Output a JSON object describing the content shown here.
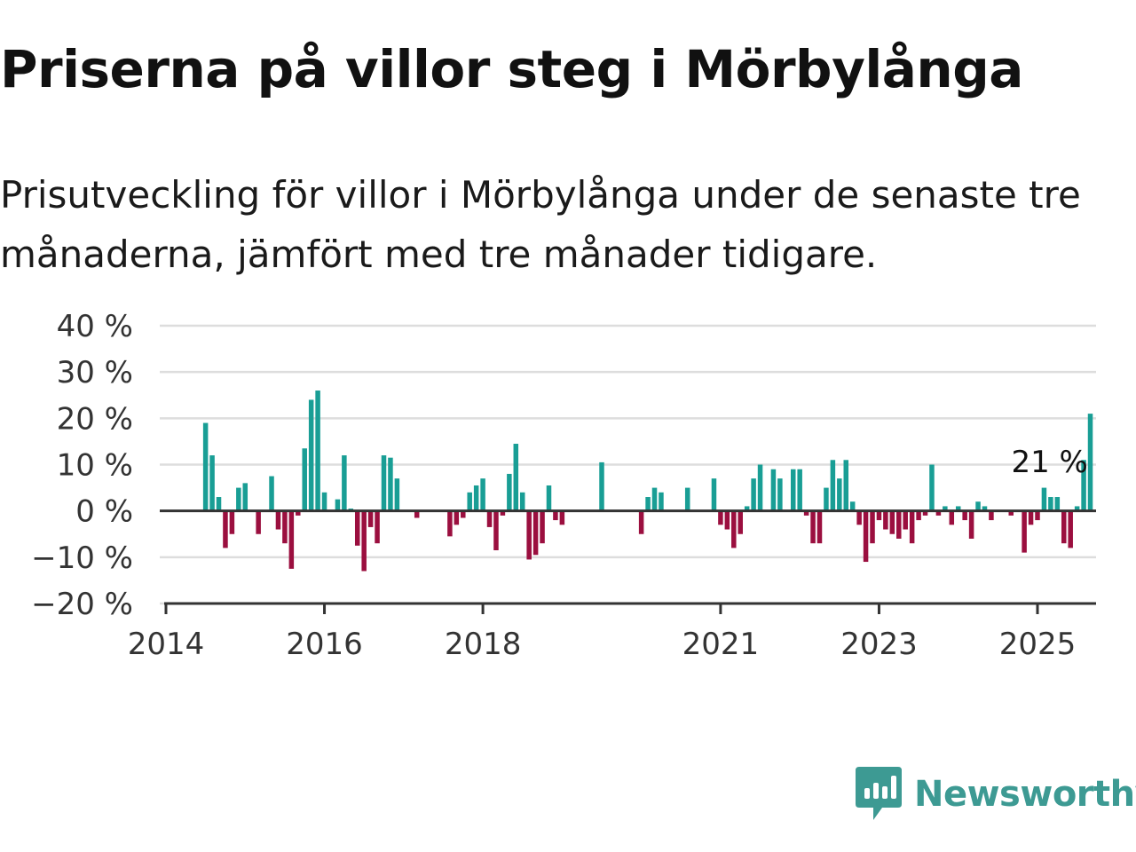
{
  "title": "Priserna på villor steg i Mörbylånga",
  "subtitle": "Prisutveckling för villor i Mörbylånga under de senaste tre månaderna, jämfört med tre månader tidigare.",
  "brand": {
    "name": "Newsworthy",
    "icon": "newsworthy-logo-icon",
    "color": "#3d9a93"
  },
  "colors": {
    "positive": "#199e95",
    "negative": "#9b0f3f",
    "grid": "#dddddd",
    "axis": "#333333"
  },
  "chart_data": {
    "type": "bar",
    "title": "Priserna på villor steg i Mörbylånga",
    "xlabel": "",
    "ylabel": "",
    "ylim": [
      -20,
      40
    ],
    "y_ticks": [
      40,
      30,
      20,
      10,
      0,
      -10,
      -20
    ],
    "y_tick_labels": [
      "40 %",
      "30 %",
      "20 %",
      "10 %",
      "0 %",
      "−10 %",
      "−20 %"
    ],
    "x_ticks": [
      "2014",
      "2016",
      "2018",
      "2021",
      "2023",
      "2025"
    ],
    "grid": true,
    "annotation": {
      "label": "21 %",
      "month": "2025-03"
    },
    "series": [
      {
        "start_month": "2014-01",
        "values": [
          null,
          null,
          null,
          null,
          null,
          null,
          19,
          12,
          3,
          -8,
          -5,
          5,
          6,
          null,
          -5,
          null,
          7.5,
          -4,
          -7,
          -12.5,
          -1,
          13.5,
          24,
          26,
          4,
          null,
          2.5,
          12,
          0.5,
          -7.5,
          -13,
          -3.5,
          -7,
          12,
          11.5,
          7,
          null,
          null,
          -1.5,
          null,
          null,
          null,
          null,
          -5.5,
          -3,
          -1.5,
          4,
          5.5,
          7,
          -3.5,
          -8.5,
          -1,
          8,
          14.5,
          4,
          -10.5,
          -9.5,
          -7,
          5.5,
          -2,
          -3,
          null,
          null,
          null,
          null,
          null,
          10.5,
          null,
          null,
          null,
          null,
          null,
          -5,
          3,
          5,
          4,
          null,
          null,
          null,
          5,
          null,
          null,
          null,
          7,
          -3,
          -4,
          -8,
          -5,
          1,
          7,
          10,
          null,
          9,
          7,
          null,
          9,
          9,
          -1,
          -7,
          -7,
          5,
          11,
          7,
          11,
          2,
          -3,
          -11,
          -7,
          -2,
          -4,
          -5,
          -6,
          -4,
          -7,
          -2,
          -1,
          10,
          -1,
          1,
          -3,
          1,
          -2,
          -6,
          2,
          1,
          -2,
          null,
          null,
          -1,
          null,
          -9,
          -3,
          -2,
          5,
          3,
          3,
          -7,
          -8,
          1,
          11,
          21
        ]
      }
    ]
  }
}
